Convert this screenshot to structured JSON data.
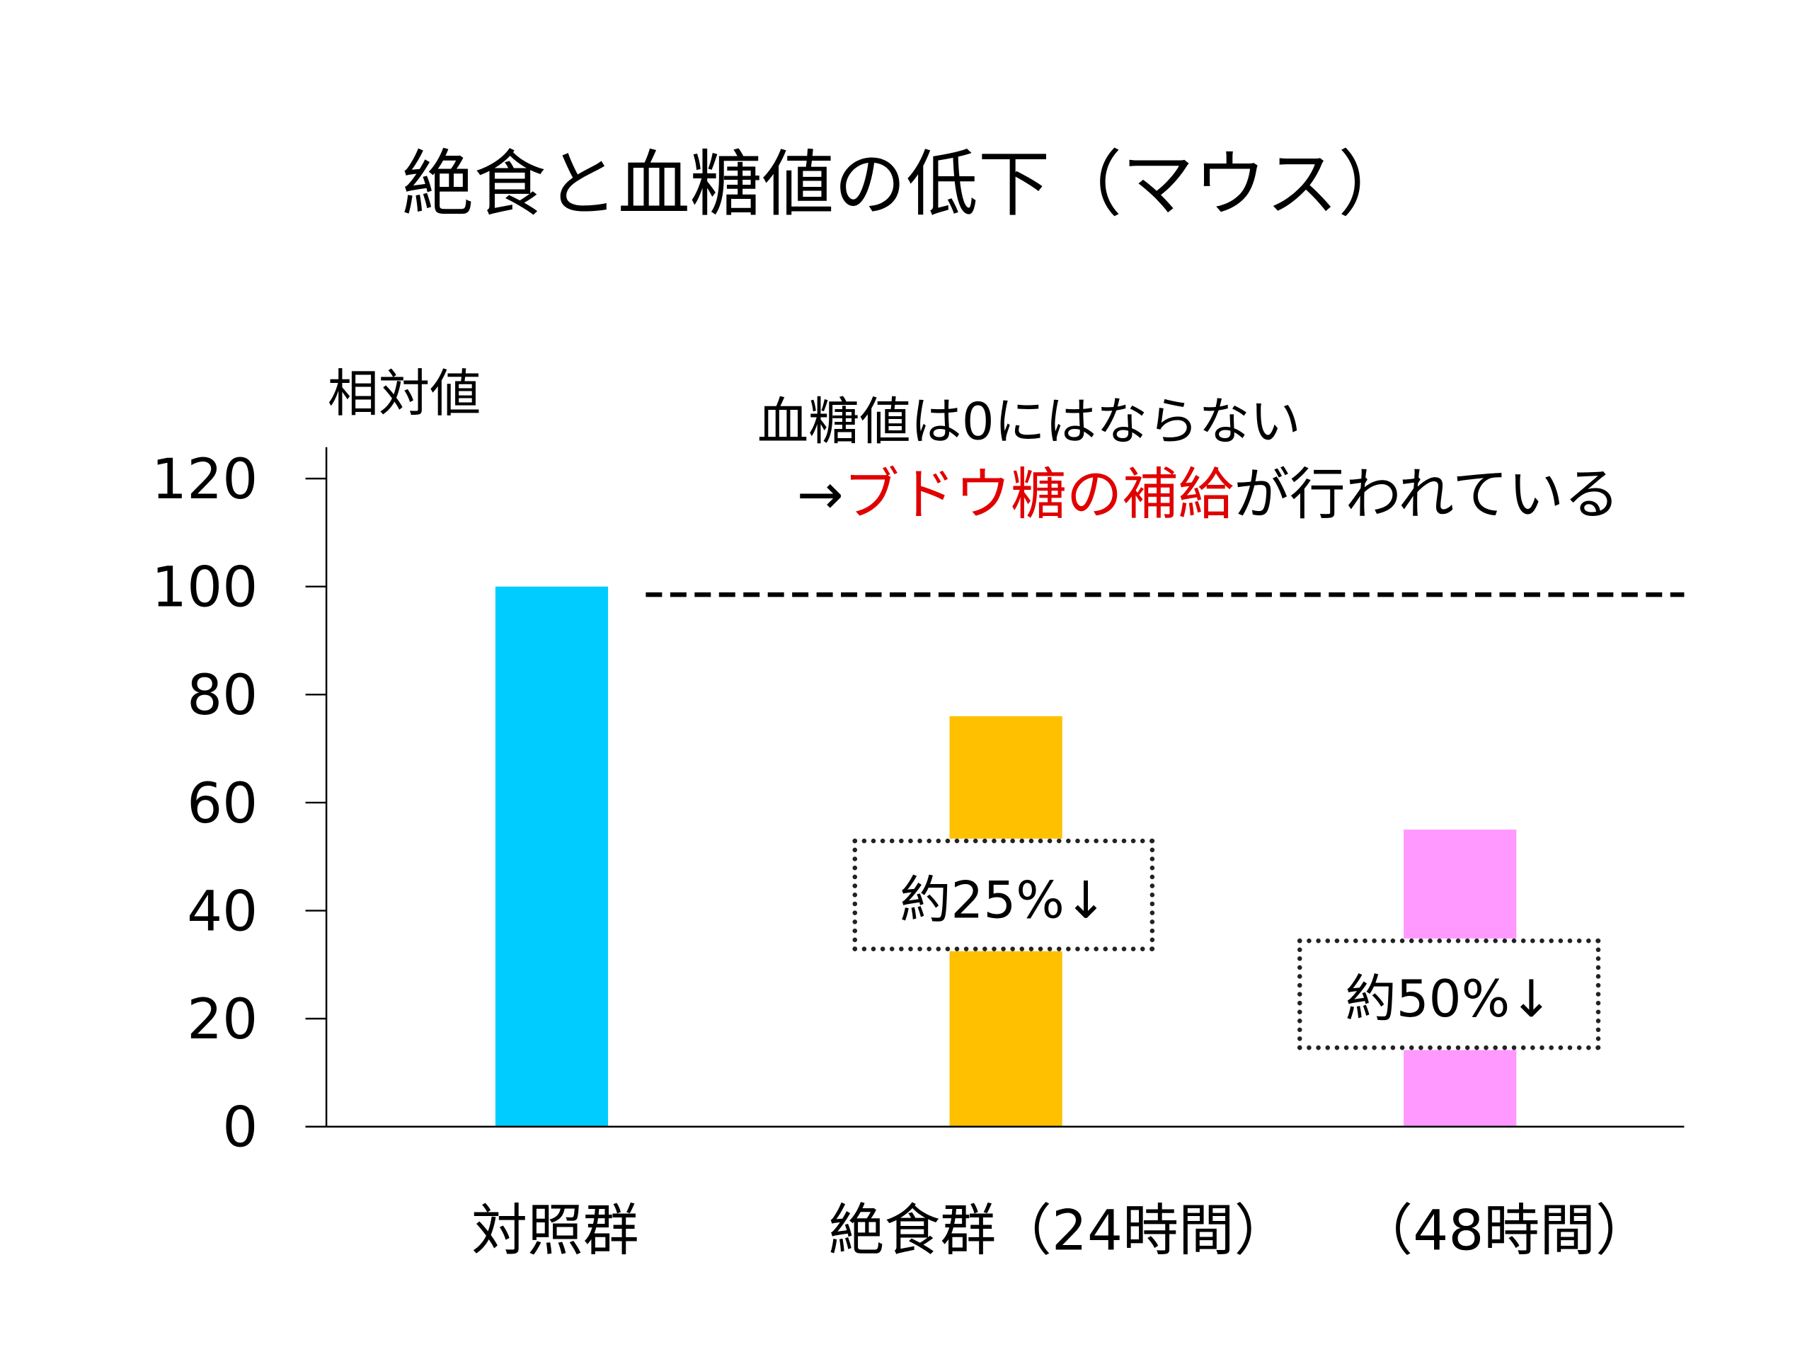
{
  "chart_data": {
    "type": "bar",
    "title": "絶食と血糖値の低下（マウス）",
    "ylabel": "相対値",
    "xlabel": "",
    "ylim": [
      0,
      120
    ],
    "yticks": [
      0,
      20,
      40,
      60,
      80,
      100,
      120
    ],
    "categories": [
      "対照群",
      "絶食群（24時間）",
      "（48時間）"
    ],
    "values": [
      100,
      76,
      55
    ],
    "colors": [
      "#00CCFF",
      "#FFC000",
      "#FF99FF"
    ],
    "reference_line": {
      "value": 98.5,
      "style": "dashed"
    },
    "annotations": {
      "note_line1": "血糖値は0にはならない",
      "note_arrow": "→",
      "note_red": "ブドウ糖の補給",
      "note_rest": "が行われている",
      "box1": "約25%↓",
      "box2": "約50%↓"
    }
  }
}
